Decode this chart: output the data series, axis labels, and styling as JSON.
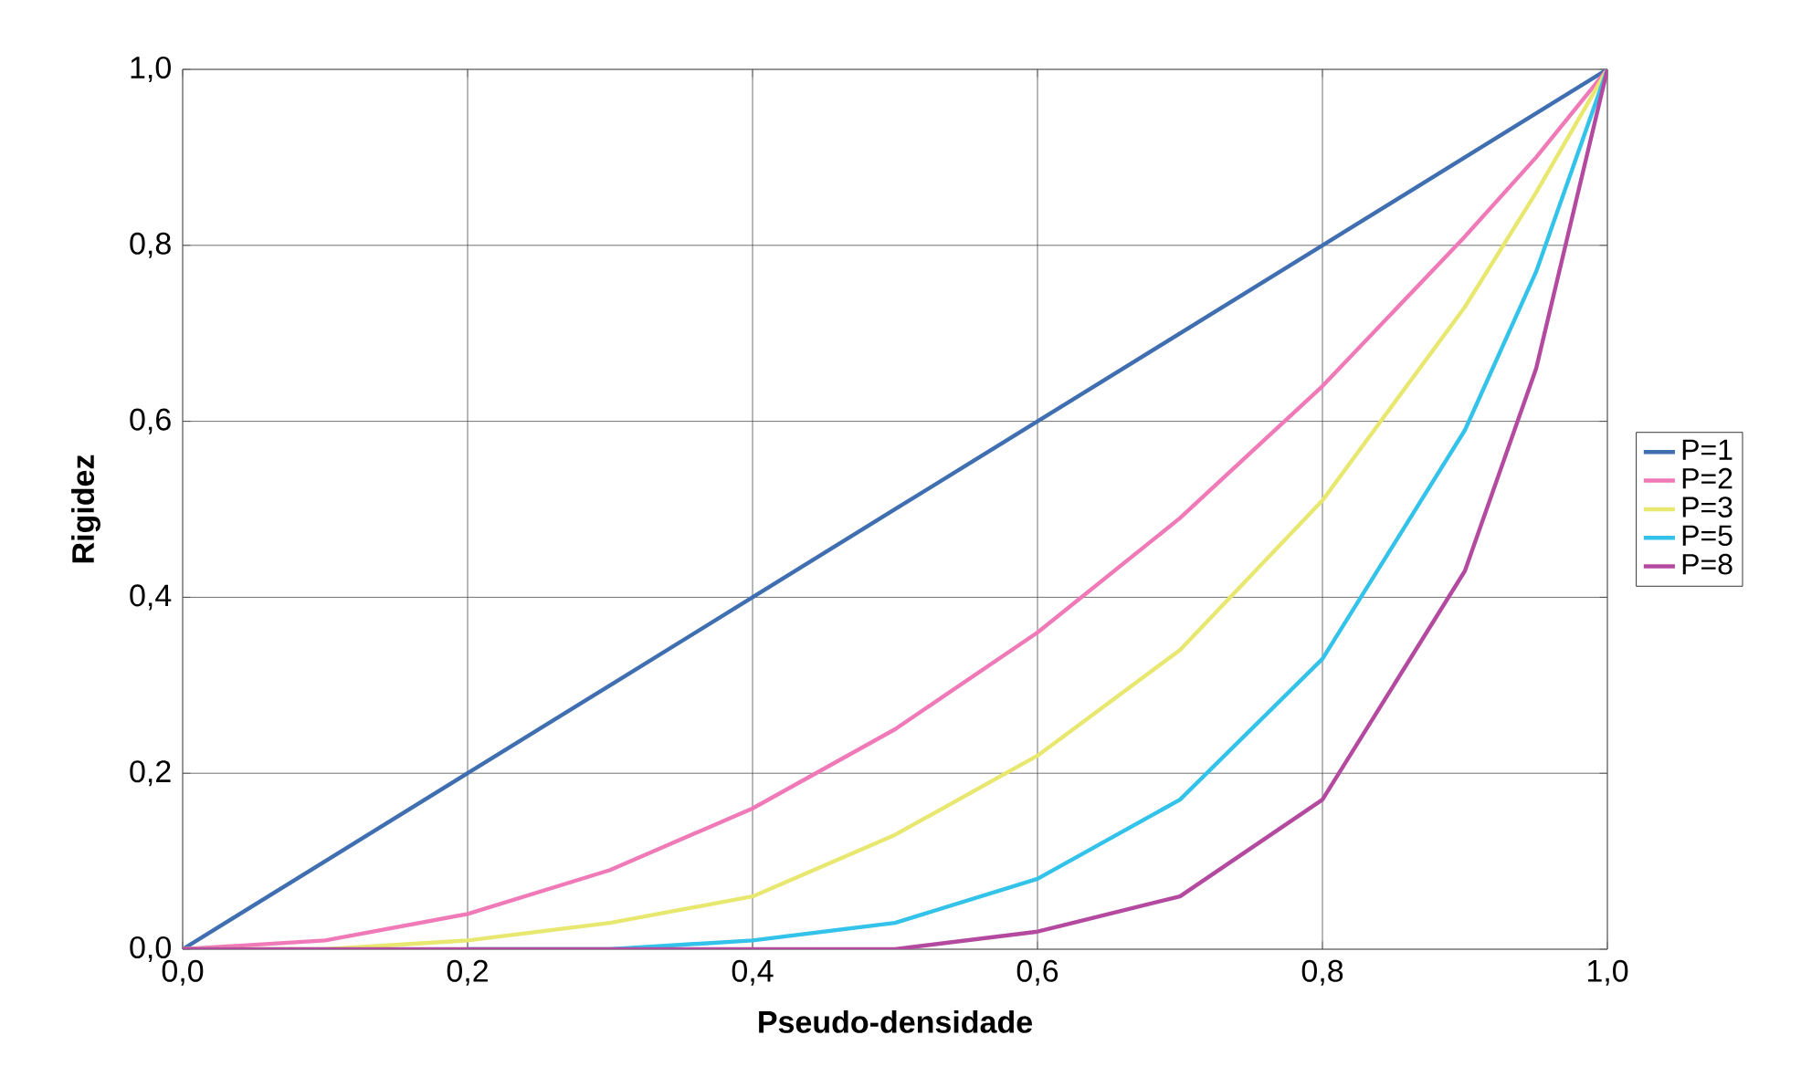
{
  "chart_data": {
    "type": "line",
    "xlabel": "Pseudo-densidade",
    "ylabel": "Rigidez",
    "x": [
      0,
      0.1,
      0.2,
      0.3,
      0.4,
      0.5,
      0.6,
      0.7,
      0.8,
      0.9,
      0.95,
      1
    ],
    "series": [
      {
        "name": "P=1",
        "color": "#3f6fb0",
        "values": [
          0,
          0.1,
          0.2,
          0.3,
          0.4,
          0.5,
          0.6,
          0.7,
          0.8,
          0.9,
          0.95,
          1
        ]
      },
      {
        "name": "P=2",
        "color": "#f07ab8",
        "values": [
          0,
          0.01,
          0.04,
          0.09,
          0.16,
          0.25,
          0.36,
          0.49,
          0.64,
          0.81,
          0.9,
          1
        ]
      },
      {
        "name": "P=3",
        "color": "#e8e870",
        "values": [
          0,
          0,
          0.01,
          0.03,
          0.06,
          0.13,
          0.22,
          0.34,
          0.51,
          0.73,
          0.86,
          1
        ]
      },
      {
        "name": "P=5",
        "color": "#33c3ea",
        "values": [
          null,
          null,
          0,
          0,
          0.01,
          0.03,
          0.08,
          0.17,
          0.33,
          0.59,
          0.77,
          1
        ]
      },
      {
        "name": "P=8",
        "color": "#b44aa0",
        "values": [
          0,
          0,
          0,
          0,
          0,
          0,
          0.02,
          0.06,
          0.17,
          0.43,
          0.66,
          1
        ]
      }
    ],
    "xlim": [
      0,
      1
    ],
    "ylim": [
      0,
      1
    ],
    "xticks": [
      {
        "value": 0,
        "label": "0,0"
      },
      {
        "value": 0.2,
        "label": "0,2"
      },
      {
        "value": 0.4,
        "label": "0,4"
      },
      {
        "value": 0.6,
        "label": "0,6"
      },
      {
        "value": 0.8,
        "label": "0,8"
      },
      {
        "value": 1,
        "label": "1,0"
      }
    ],
    "yticks": [
      {
        "value": 0,
        "label": "0,0"
      },
      {
        "value": 0.2,
        "label": "0,2"
      },
      {
        "value": 0.4,
        "label": "0,4"
      },
      {
        "value": 0.6,
        "label": "0,6"
      },
      {
        "value": 0.8,
        "label": "0,8"
      },
      {
        "value": 1,
        "label": "1,0"
      }
    ],
    "grid": true,
    "legend": "right",
    "marker": "none",
    "line_style": "solid"
  }
}
